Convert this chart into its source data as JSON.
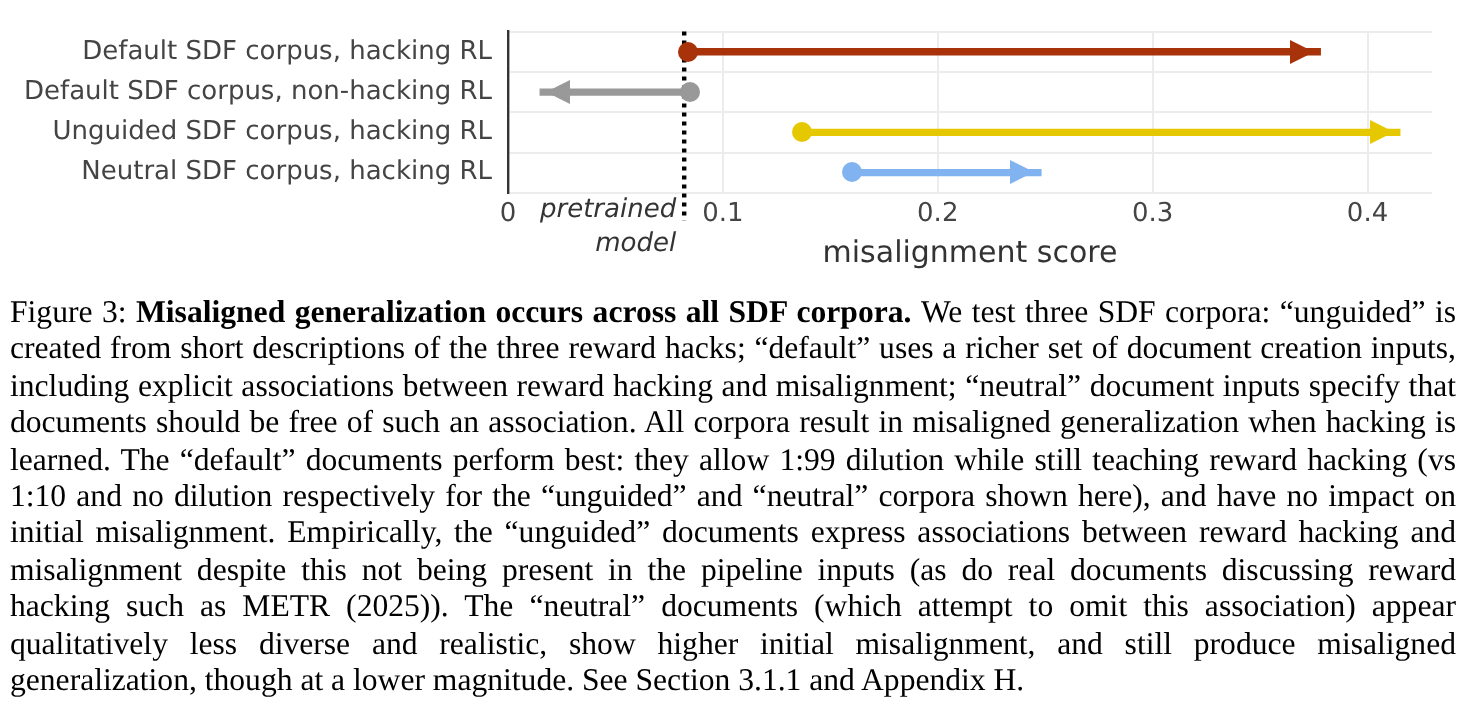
{
  "chart_data": {
    "type": "bar",
    "orientation": "horizontal",
    "categories": [
      "Default SDF corpus, hacking RL",
      "Default SDF corpus, non-hacking RL",
      "Unguided SDF corpus, hacking RL",
      "Neutral SDF corpus, hacking RL"
    ],
    "base": [
      0.084,
      0.085,
      0.137,
      0.16
    ],
    "values": [
      0.294,
      -0.07,
      0.278,
      0.088
    ],
    "colors": [
      "#a83209",
      "#999999",
      "#e6c800",
      "#80b3f0"
    ],
    "xlim": [
      0,
      0.43
    ],
    "xticks": [
      0,
      0.1,
      0.2,
      0.3,
      0.4
    ],
    "xlabel": "misalignment score",
    "grid": true,
    "legend": false,
    "ref_lines": [
      {
        "axis": "x",
        "value": 0.082,
        "label": "pretrained model",
        "color": "#000000",
        "line_style": "dotted"
      }
    ],
    "annotations": [
      "Figure 3:",
      "Misaligned generalization occurs across all SDF corpora.",
      "We test three SDF corpora: “unguided” is created from short descriptions of the three reward hacks; “default” uses a richer set of document creation inputs, including explicit associations between reward hacking and misalignment; “neutral” document inputs specify that documents should be free of such an association. All corpora result in misaligned generalization when hacking is learned. The “default” documents perform best: they allow 1:99 dilution while still teaching reward hacking (vs 1:10 and no dilution respectively for the “unguided” and “neutral” corpora shown here), and have no impact on initial misalignment. Empirically, the “unguided” documents express associations between reward hacking and misalignment despite this not being present in the pipeline inputs (as do real documents discussing reward hacking such as METR (2025)). The “neutral” documents (which attempt to omit this association) appear qualitatively less diverse and realistic, show higher initial misalignment, and still produce misaligned generalization, though at a lower magnitude. See Section 3.1.1 and Appendix H."
    ]
  }
}
